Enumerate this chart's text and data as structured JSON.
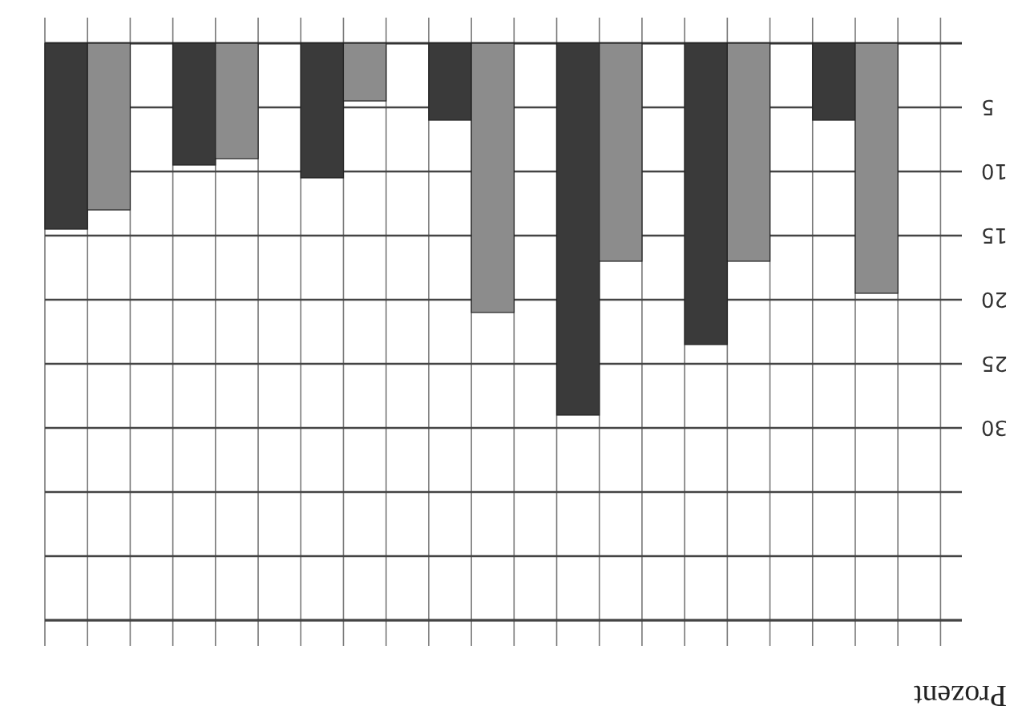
{
  "chart_data": {
    "type": "bar",
    "annotations": [
      "Prozent"
    ],
    "categories": [
      null,
      null,
      null,
      null,
      null,
      null,
      null
    ],
    "series": [
      {
        "color": "#3a3a3a",
        "values": [
          14.5,
          9.5,
          10.5,
          6,
          29,
          23.5,
          6
        ]
      },
      {
        "color": "#8c8c8c",
        "values": [
          13,
          9,
          4.5,
          21,
          17,
          17,
          19.5
        ]
      }
    ],
    "ylim": [
      45,
      0
    ],
    "yticks": [
      5,
      10,
      15,
      20,
      25,
      30,
      {
        "value": 35,
        "label": null
      },
      {
        "value": 40,
        "label": null
      },
      {
        "value": 45,
        "label": null
      }
    ],
    "grid": true
  }
}
